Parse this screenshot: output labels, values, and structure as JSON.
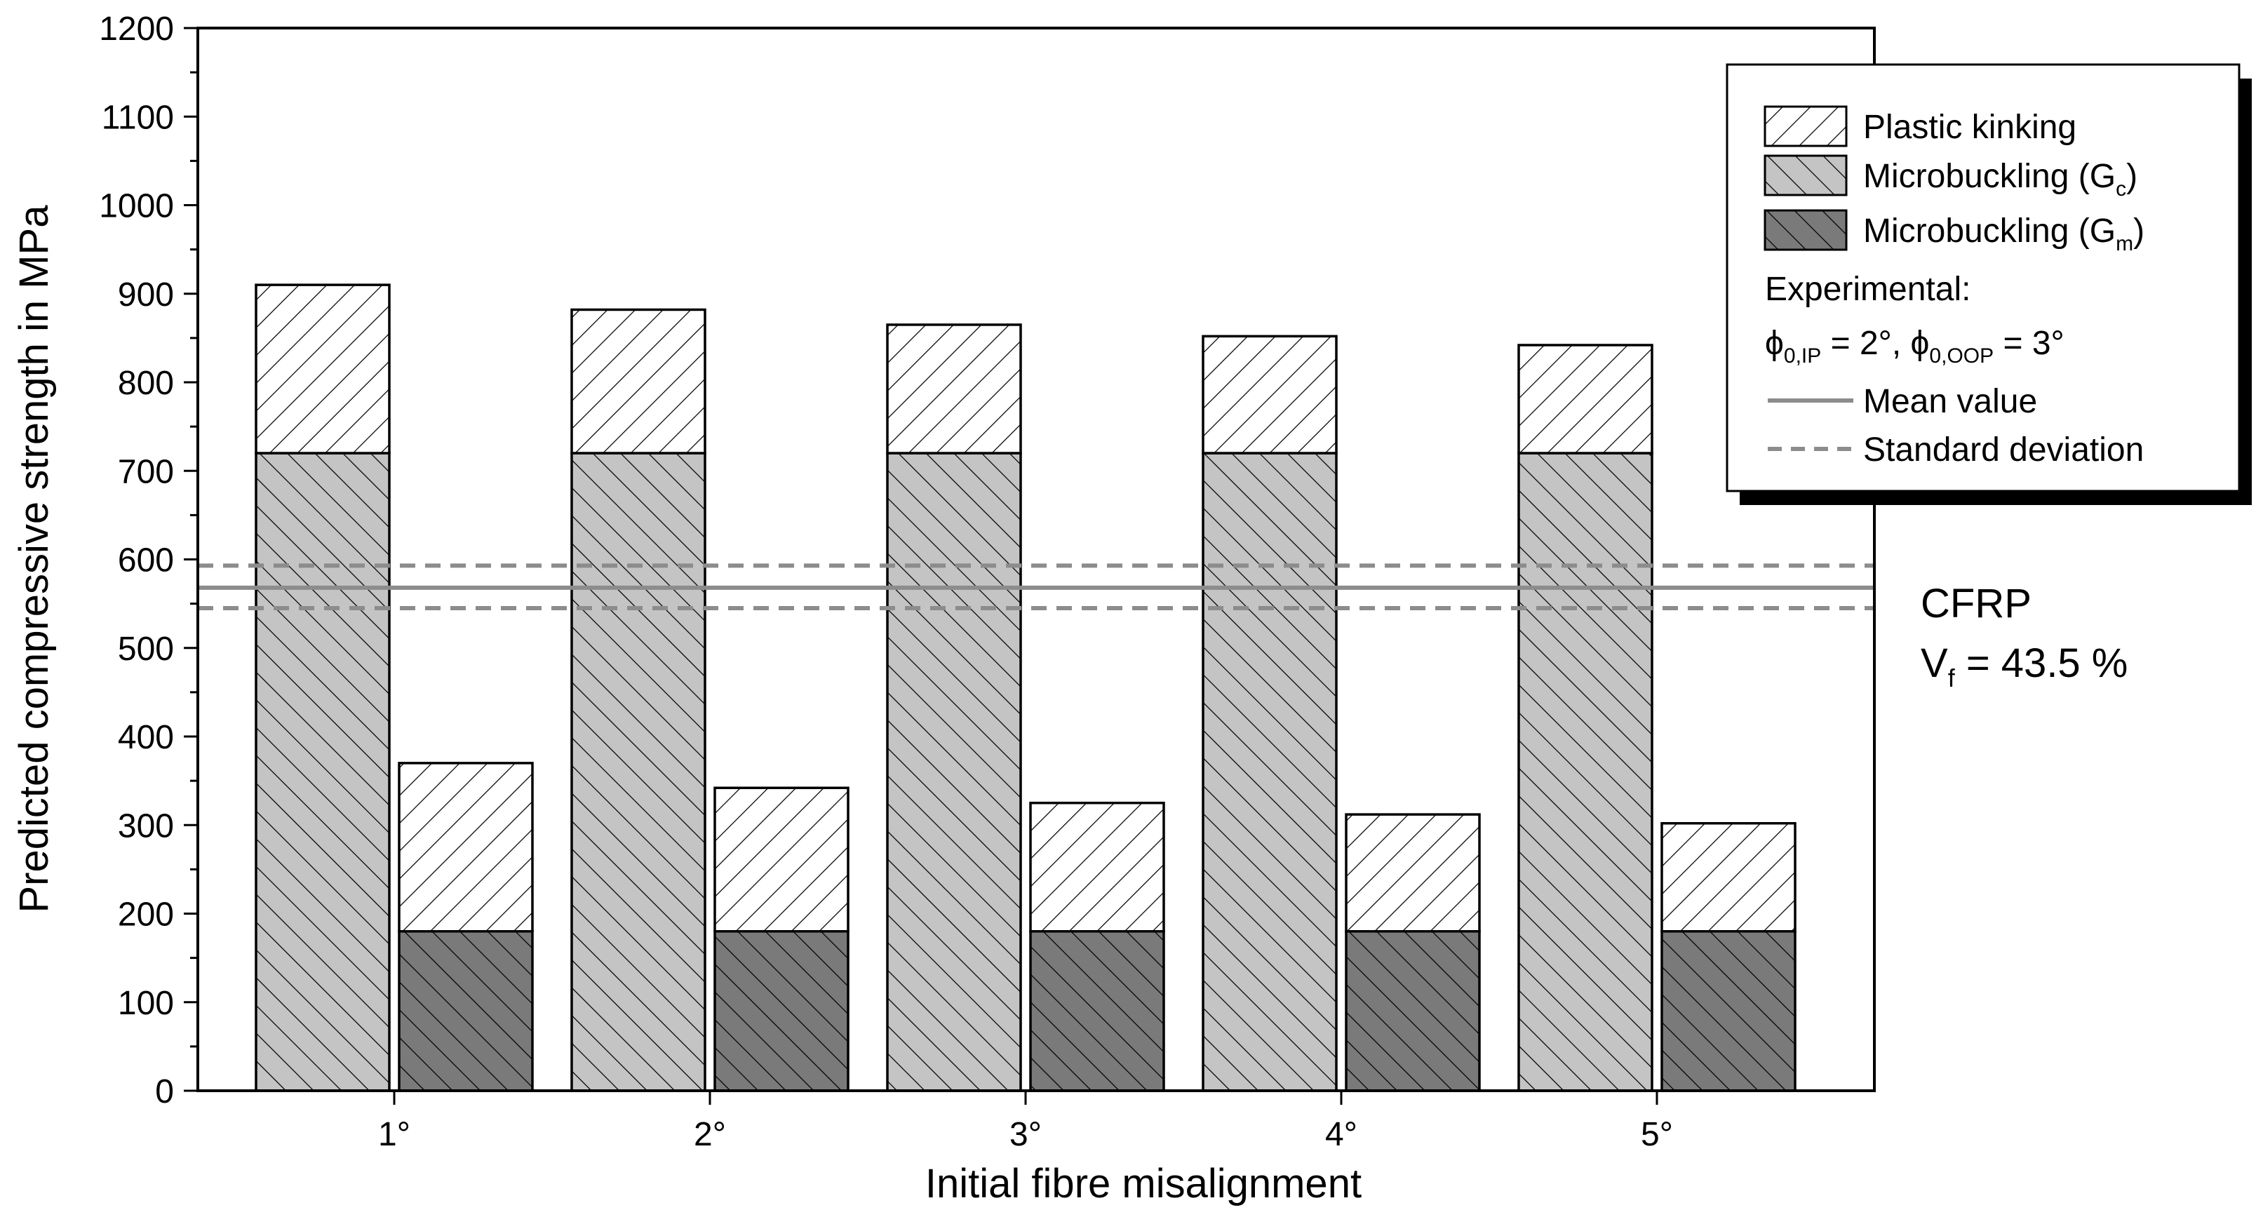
{
  "chart_data": {
    "type": "bar",
    "xlabel": "Initial fibre misalignment",
    "ylabel": "Predicted compressive strength in MPa",
    "ylim": [
      0,
      1200
    ],
    "yticks": [
      0,
      100,
      200,
      300,
      400,
      500,
      600,
      700,
      800,
      900,
      1000,
      1100,
      1200
    ],
    "categories": [
      "1°",
      "2°",
      "3°",
      "4°",
      "5°"
    ],
    "groups": [
      {
        "bar": "G_c",
        "segments": [
          {
            "series": "Microbuckling (G_c)",
            "values": [
              720,
              720,
              720,
              720,
              720
            ]
          },
          {
            "series": "Plastic kinking",
            "values": [
              190,
              162,
              145,
              132,
              122
            ]
          }
        ],
        "totals": [
          910,
          882,
          865,
          852,
          842
        ]
      },
      {
        "bar": "G_m",
        "segments": [
          {
            "series": "Microbuckling (G_m)",
            "values": [
              180,
              180,
              180,
              180,
              180
            ]
          },
          {
            "series": "Plastic kinking",
            "values": [
              190,
              162,
              145,
              132,
              122
            ]
          }
        ],
        "totals": [
          370,
          342,
          325,
          312,
          302
        ]
      }
    ],
    "experimental": {
      "mean": 568,
      "std_lower": 545,
      "std_upper": 593
    },
    "legend": {
      "position": "top-right",
      "items": [
        {
          "key": "plastic",
          "label": "Plastic kinking",
          "sub": "",
          "label_end": ""
        },
        {
          "key": "gc",
          "label": "Microbuckling (G",
          "sub": "c",
          "label_end": ")"
        },
        {
          "key": "gm",
          "label": "Microbuckling (G",
          "sub": "m",
          "label_end": ")"
        }
      ],
      "experimental_heading": "Experimental:",
      "angle_line": {
        "phi": "ϕ",
        "sub1": "0,IP",
        "mid": " = 2°, ",
        "sub2": "0,OOP",
        "end": " = 3°"
      },
      "mean_label": "Mean value",
      "std_label": "Standard deviation"
    },
    "annotation": {
      "line1": "CFRP",
      "line2_main": "V",
      "line2_sub": "f",
      "line2_end": " = 43.5 %"
    },
    "colors": {
      "plastic_fill": "#ffffff",
      "gc_fill": "#c4c4c4",
      "gm_fill": "#7a7a7a",
      "mean_line": "#8c8c8c",
      "std_line": "#8c8c8c"
    }
  }
}
